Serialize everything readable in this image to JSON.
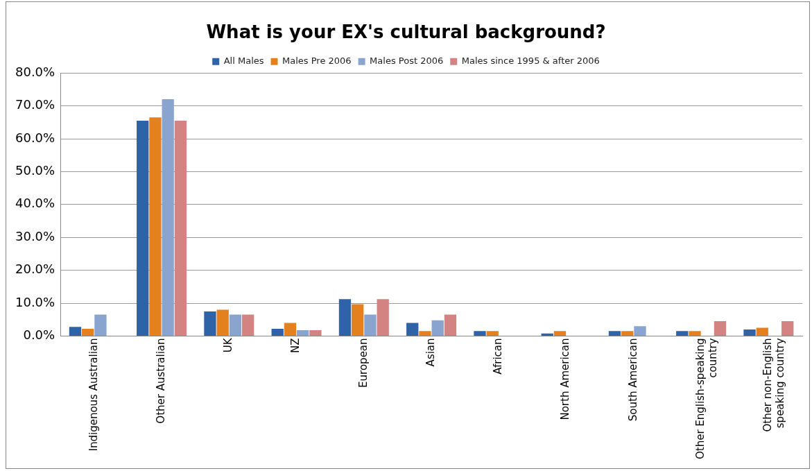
{
  "chart_data": {
    "type": "bar",
    "title": "What is your EX's cultural background?",
    "categories": [
      "Indigenous Australian",
      "Other Australian",
      "UK",
      "NZ",
      "European",
      "Asian",
      "African",
      "North American",
      "South American",
      "Other English-speaking country",
      "Other non-English speaking country"
    ],
    "series": [
      {
        "name": "All Males",
        "color": "#2e63a8",
        "values": [
          2.8,
          65.5,
          7.5,
          2.2,
          11.2,
          4,
          1.5,
          0.8,
          1.5,
          1.5,
          2
        ]
      },
      {
        "name": "Males Pre 2006",
        "color": "#e5801e",
        "values": [
          2.2,
          66.5,
          8,
          4,
          9.7,
          1.5,
          1.5,
          1.5,
          1.5,
          1.5,
          2.5
        ]
      },
      {
        "name": "Males Post 2006",
        "color": "#8aa4d0",
        "values": [
          6.5,
          72,
          6.5,
          1.8,
          6.5,
          4.8,
          0,
          0,
          3,
          0,
          0
        ]
      },
      {
        "name": "Males since 1995 & after 2006",
        "color": "#d48383",
        "values": [
          0,
          65.5,
          6.5,
          1.8,
          11.2,
          6.5,
          0,
          0,
          0,
          4.5,
          4.5
        ]
      }
    ],
    "ylim": [
      0,
      80
    ],
    "yticks": [
      {
        "value": 0,
        "label": "0.0%"
      },
      {
        "value": 10,
        "label": "10.0%"
      },
      {
        "value": 20,
        "label": "20.0%"
      },
      {
        "value": 30,
        "label": "30.0%"
      },
      {
        "value": 40,
        "label": "40.0%"
      },
      {
        "value": 50,
        "label": "50.0%"
      },
      {
        "value": 60,
        "label": "60.0%"
      },
      {
        "value": 70,
        "label": "70.0%"
      },
      {
        "value": 80,
        "label": "80.0%"
      }
    ],
    "grid": "y",
    "legend": "top"
  }
}
